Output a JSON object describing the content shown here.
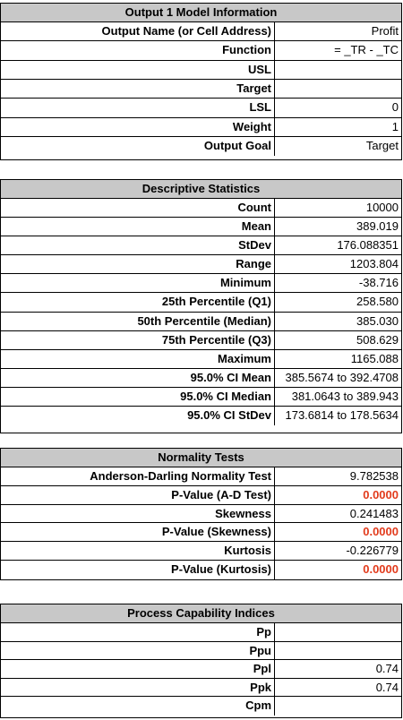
{
  "model_info": {
    "title": "Output 1 Model Information",
    "rows": [
      {
        "label": "Output Name (or Cell Address)",
        "value": "Profit"
      },
      {
        "label": "Function",
        "value": "= _TR - _TC"
      },
      {
        "label": "USL",
        "value": ""
      },
      {
        "label": "Target",
        "value": ""
      },
      {
        "label": "LSL",
        "value": "0"
      },
      {
        "label": "Weight",
        "value": "1"
      },
      {
        "label": "Output Goal",
        "value": "Target"
      }
    ]
  },
  "descriptive": {
    "title": "Descriptive Statistics",
    "rows": [
      {
        "label": "Count",
        "value": "10000"
      },
      {
        "label": "Mean",
        "value": "389.019"
      },
      {
        "label": "StDev",
        "value": "176.088351"
      },
      {
        "label": "Range",
        "value": "1203.804"
      },
      {
        "label": "Minimum",
        "value": "-38.716"
      },
      {
        "label": "25th Percentile (Q1)",
        "value": "258.580"
      },
      {
        "label": "50th Percentile (Median)",
        "value": "385.030"
      },
      {
        "label": "75th Percentile (Q3)",
        "value": "508.629"
      },
      {
        "label": "Maximum",
        "value": "1165.088"
      },
      {
        "label": "95.0% CI Mean",
        "value": "385.5674 to 392.4708"
      },
      {
        "label": "95.0% CI Median",
        "value": "381.0643 to 389.943"
      },
      {
        "label": "95.0% CI StDev",
        "value": "173.6814 to 178.5634"
      }
    ]
  },
  "normality": {
    "title": "Normality Tests",
    "rows": [
      {
        "label": "Anderson-Darling Normality Test",
        "value": "9.782538"
      },
      {
        "label": "P-Value (A-D Test)",
        "value": "0.0000"
      },
      {
        "label": "Skewness",
        "value": "0.241483"
      },
      {
        "label": "P-Value (Skewness)",
        "value": "0.0000"
      },
      {
        "label": "Kurtosis",
        "value": "-0.226779"
      },
      {
        "label": "P-Value (Kurtosis)",
        "value": "0.0000"
      }
    ]
  },
  "capability": {
    "title": "Process Capability Indices",
    "rows": [
      {
        "label": "Pp",
        "value": ""
      },
      {
        "label": "Ppu",
        "value": ""
      },
      {
        "label": "Ppl",
        "value": "0.74"
      },
      {
        "label": "Ppk",
        "value": "0.74"
      },
      {
        "label": "Cpm",
        "value": ""
      }
    ]
  },
  "colors": {
    "header_bg": "#c8c8c8",
    "highlight_red": "#e23b1c"
  }
}
